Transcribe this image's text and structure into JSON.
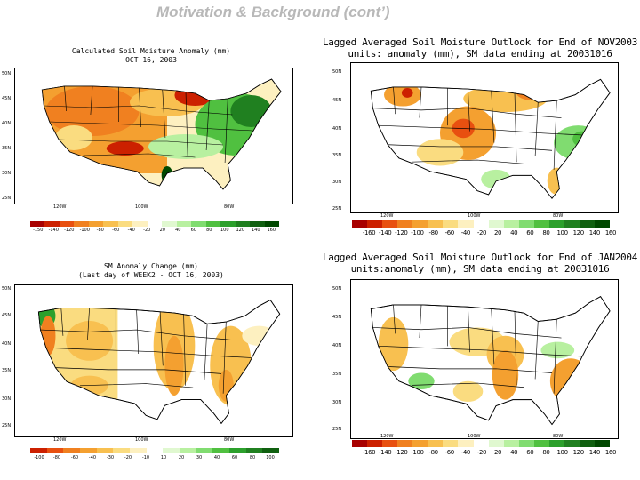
{
  "slide": {
    "title": "Motivation & Background (cont’)"
  },
  "palette": {
    "dry": [
      "#a80000",
      "#cc2000",
      "#e85010",
      "#f08020",
      "#f4a030",
      "#f8c050",
      "#fadc80",
      "#fdf0c0"
    ],
    "wet": [
      "#e0f8d0",
      "#b8f0a0",
      "#80dc70",
      "#50c040",
      "#2ca02c",
      "#208020",
      "#106010",
      "#004800"
    ]
  },
  "panels": [
    {
      "id": "soil-moisture-anomaly",
      "title_lines": [
        "Calculated Soil Moisture Anomaly (mm)",
        "OCT 16, 2003"
      ],
      "lat_labels": [
        "50N",
        "45N",
        "40N",
        "35N",
        "30N",
        "25N"
      ],
      "lon_labels": [
        "120W",
        "100W",
        "80W"
      ],
      "colorbar_labels": [
        "-150",
        "-140",
        "-120",
        "-100",
        "-80",
        "-60",
        "-40",
        "-20",
        "20",
        "40",
        "60",
        "80",
        "100",
        "120",
        "140",
        "160"
      ]
    },
    {
      "id": "outlook-nov2003",
      "title_lines": [
        "Lagged Averaged Soil Moisture Outlook for End of NOV2003",
        "units: anomaly (mm), SM data ending at 20031016"
      ],
      "lat_labels": [
        "50N",
        "45N",
        "40N",
        "35N",
        "30N",
        "25N"
      ],
      "lon_labels": [
        "120W",
        "100W",
        "80W"
      ],
      "colorbar_labels": [
        "-160",
        "-140",
        "-120",
        "-100",
        "-80",
        "-60",
        "-40",
        "-20",
        "20",
        "40",
        "60",
        "80",
        "100",
        "120",
        "140",
        "160"
      ]
    },
    {
      "id": "sm-anomaly-change",
      "title_lines": [
        "SM Anomaly Change (mm)",
        "(Last day of WEEK2 - OCT 16, 2003)"
      ],
      "lat_labels": [
        "50N",
        "45N",
        "40N",
        "35N",
        "30N",
        "25N"
      ],
      "lon_labels": [
        "120W",
        "100W",
        "80W"
      ],
      "colorbar_labels": [
        "-100",
        "-80",
        "-60",
        "-40",
        "-30",
        "-20",
        "-10",
        "10",
        "20",
        "30",
        "40",
        "60",
        "80",
        "100"
      ]
    },
    {
      "id": "outlook-jan2004",
      "title_lines": [
        "Lagged Averaged Soil Moisture Outlook for End of JAN2004",
        "units:anomaly (mm), SM data ending at 20031016"
      ],
      "lat_labels": [
        "50N",
        "45N",
        "40N",
        "35N",
        "30N",
        "25N"
      ],
      "lon_labels": [
        "120W",
        "100W",
        "80W"
      ],
      "colorbar_labels": [
        "-160",
        "-140",
        "-120",
        "-100",
        "-80",
        "-60",
        "-40",
        "-20",
        "20",
        "40",
        "60",
        "80",
        "100",
        "120",
        "140",
        "160"
      ]
    }
  ]
}
